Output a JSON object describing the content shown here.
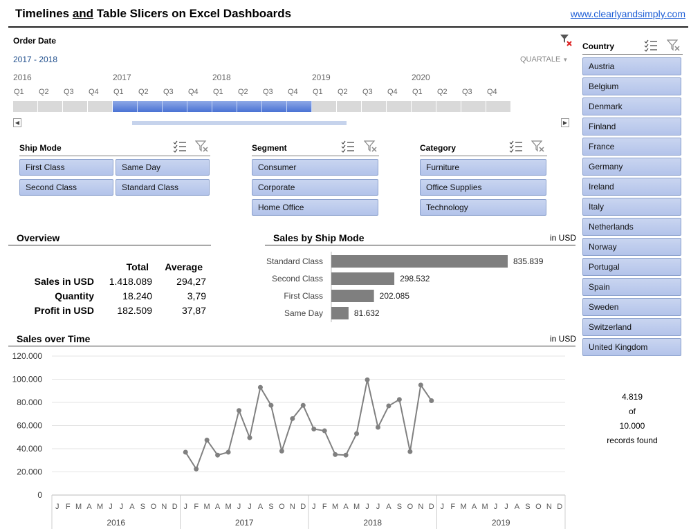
{
  "header": {
    "title_pre": "Timelines ",
    "title_and": "and",
    "title_post": " Table Slicers on Excel Dashboards",
    "link": "www.clearlyandsimply.com"
  },
  "timeline": {
    "label": "Order Date",
    "range": "2017  -  2018",
    "level": "QUARTALE",
    "years": [
      "2016",
      "2017",
      "2018",
      "2019",
      "2020"
    ],
    "quarters": [
      "Q1",
      "Q2",
      "Q3",
      "Q4"
    ],
    "selected_from_index": 4,
    "selected_to_index": 11,
    "cells": 20
  },
  "slicers": {
    "ship_mode": {
      "title": "Ship Mode",
      "items": [
        "First Class",
        "Same Day",
        "Second Class",
        "Standard Class"
      ]
    },
    "segment": {
      "title": "Segment",
      "items": [
        "Consumer",
        "Corporate",
        "Home Office"
      ]
    },
    "category": {
      "title": "Category",
      "items": [
        "Furniture",
        "Office Supplies",
        "Technology"
      ]
    },
    "country": {
      "title": "Country",
      "items": [
        "Austria",
        "Belgium",
        "Denmark",
        "Finland",
        "France",
        "Germany",
        "Ireland",
        "Italy",
        "Netherlands",
        "Norway",
        "Portugal",
        "Spain",
        "Sweden",
        "Switzerland",
        "United Kingdom"
      ]
    }
  },
  "overview": {
    "title": "Overview",
    "col_total": "Total",
    "col_average": "Average",
    "rows": [
      {
        "label": "Sales in USD",
        "total": "1.418.089",
        "average": "294,27"
      },
      {
        "label": "Quantity",
        "total": "18.240",
        "average": "3,79"
      },
      {
        "label": "Profit in USD",
        "total": "182.509",
        "average": "37,87"
      }
    ]
  },
  "records": {
    "count": "4.819",
    "of": "of",
    "total": "10.000",
    "suffix": "records found"
  },
  "chart_data": [
    {
      "type": "bar",
      "title": "Sales by Ship Mode",
      "unit_label": "in USD",
      "categories": [
        "Standard Class",
        "Second Class",
        "First Class",
        "Same Day"
      ],
      "values": [
        835839,
        298532,
        202085,
        81632
      ],
      "value_labels": [
        "835.839",
        "298.532",
        "202.085",
        "81.632"
      ],
      "bar_color": "#7f7f7f"
    },
    {
      "type": "line",
      "title": "Sales over Time",
      "unit_label": "in USD",
      "ylim": [
        0,
        120000
      ],
      "y_ticks": [
        "0",
        "20.000",
        "40.000",
        "60.000",
        "80.000",
        "100.000",
        "120.000"
      ],
      "years": [
        "2016",
        "2017",
        "2018",
        "2019"
      ],
      "months": [
        "J",
        "F",
        "M",
        "A",
        "M",
        "J",
        "J",
        "A",
        "S",
        "O",
        "N",
        "D"
      ],
      "series": [
        {
          "start_month_index": 12,
          "values": [
            37000,
            22500,
            47500,
            34500,
            37000,
            73000,
            49500,
            93000,
            77500,
            38000,
            66000,
            77500,
            57000,
            55500,
            35000,
            34500,
            53000,
            99500,
            58500,
            77000,
            82500,
            37500,
            95000,
            81500
          ]
        }
      ],
      "line_color": "#808080"
    }
  ]
}
